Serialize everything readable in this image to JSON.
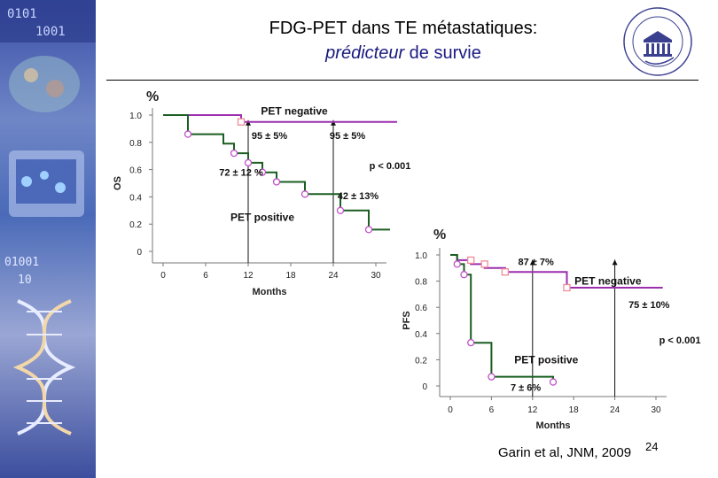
{
  "title": {
    "line1": "FDG-PET dans TE métastatiques:",
    "line2_italic": "prédicteur",
    "line2_rest": " de survie"
  },
  "citation": "Garin et al, JNM, 2009",
  "page_number": "24",
  "colors": {
    "positive": "#1a5e22",
    "negative": "#9b2fae",
    "marker_pos": "#c050c8",
    "marker_neg": "#f08a9a",
    "title_sub": "#1a1a80"
  },
  "chart_data": [
    {
      "type": "line",
      "unit_label": "%",
      "ylabel": "OS",
      "xlabel": "Months",
      "x_ticks": [
        0,
        6,
        12,
        18,
        24,
        30
      ],
      "y_ticks": [
        "0",
        "0.2",
        "0.4",
        "0.6",
        "0.8",
        "1.0"
      ],
      "xlim": [
        0,
        31
      ],
      "ylim": [
        0,
        1.0
      ],
      "series": [
        {
          "name": "PET negative",
          "color": "#9b2fae",
          "steps": [
            [
              0,
              1.0
            ],
            [
              11,
              1.0
            ],
            [
              11,
              0.95
            ],
            [
              33,
              0.95
            ]
          ],
          "markers": [
            [
              11,
              0.95
            ]
          ],
          "marker_color": "#f08a9a"
        },
        {
          "name": "PET positive",
          "color": "#1a5e22",
          "steps": [
            [
              0,
              1.0
            ],
            [
              3.5,
              1.0
            ],
            [
              3.5,
              0.86
            ],
            [
              8.5,
              0.86
            ],
            [
              8.5,
              0.79
            ],
            [
              10,
              0.79
            ],
            [
              10,
              0.72
            ],
            [
              12,
              0.72
            ],
            [
              12,
              0.65
            ],
            [
              14,
              0.65
            ],
            [
              14,
              0.58
            ],
            [
              16,
              0.58
            ],
            [
              16,
              0.51
            ],
            [
              20,
              0.51
            ],
            [
              20,
              0.42
            ],
            [
              25,
              0.42
            ],
            [
              25,
              0.3
            ],
            [
              29,
              0.3
            ],
            [
              29,
              0.16
            ],
            [
              32,
              0.16
            ]
          ],
          "markers": [
            [
              3.5,
              0.86
            ],
            [
              10,
              0.72
            ],
            [
              12,
              0.65
            ],
            [
              14,
              0.58
            ],
            [
              16,
              0.51
            ],
            [
              20,
              0.42
            ],
            [
              25,
              0.3
            ],
            [
              29,
              0.16
            ]
          ],
          "marker_color": "#c050c8"
        }
      ],
      "reference_x": [
        12,
        24
      ],
      "annotations": [
        {
          "text": "PET negative",
          "x": 18.5,
          "y": 1.03
        },
        {
          "text": "95 ± 5%",
          "x": 15,
          "y": 0.85
        },
        {
          "text": "95 ± 5%",
          "x": 26,
          "y": 0.85
        },
        {
          "text": "p < 0.001",
          "x": 32,
          "y": 0.63
        },
        {
          "text": "72 ± 12 %",
          "x": 11,
          "y": 0.58
        },
        {
          "text": "42 ± 13%",
          "x": 27.5,
          "y": 0.41
        },
        {
          "text": "PET positive",
          "x": 14,
          "y": 0.25
        }
      ]
    },
    {
      "type": "line",
      "unit_label": "%",
      "ylabel": "PFS",
      "xlabel": "Months",
      "x_ticks": [
        0,
        6,
        12,
        18,
        24,
        30
      ],
      "y_ticks": [
        "0",
        "0.2",
        "0.4",
        "0.6",
        "0.8",
        "1.0"
      ],
      "xlim": [
        0,
        31
      ],
      "ylim": [
        0,
        1.0
      ],
      "series": [
        {
          "name": "PET negative",
          "color": "#9b2fae",
          "steps": [
            [
              0,
              1.0
            ],
            [
              1,
              1.0
            ],
            [
              1,
              0.96
            ],
            [
              3,
              0.96
            ],
            [
              3,
              0.93
            ],
            [
              5,
              0.93
            ],
            [
              5,
              0.9
            ],
            [
              8,
              0.9
            ],
            [
              8,
              0.87
            ],
            [
              17,
              0.87
            ],
            [
              17,
              0.75
            ],
            [
              31,
              0.75
            ]
          ],
          "markers": [
            [
              3,
              0.96
            ],
            [
              5,
              0.93
            ],
            [
              8,
              0.87
            ],
            [
              17,
              0.75
            ]
          ],
          "marker_color": "#f08a9a"
        },
        {
          "name": "PET positive",
          "color": "#1a5e22",
          "steps": [
            [
              0,
              1.0
            ],
            [
              1,
              1.0
            ],
            [
              1,
              0.93
            ],
            [
              2,
              0.93
            ],
            [
              2,
              0.85
            ],
            [
              3,
              0.85
            ],
            [
              3,
              0.33
            ],
            [
              6,
              0.33
            ],
            [
              6,
              0.07
            ],
            [
              15,
              0.07
            ],
            [
              15,
              0.03
            ]
          ],
          "markers": [
            [
              1,
              0.93
            ],
            [
              2,
              0.85
            ],
            [
              3,
              0.33
            ],
            [
              6,
              0.07
            ],
            [
              15,
              0.03
            ]
          ],
          "marker_color": "#c050c8"
        }
      ],
      "reference_x": [
        12,
        24
      ],
      "annotations": [
        {
          "text": "87 ± 7%",
          "x": 12.5,
          "y": 0.95
        },
        {
          "text": "PET negative",
          "x": 23,
          "y": 0.8
        },
        {
          "text": "75 ± 10%",
          "x": 29,
          "y": 0.62
        },
        {
          "text": "p < 0.001",
          "x": 33.5,
          "y": 0.35
        },
        {
          "text": "PET positive",
          "x": 14,
          "y": 0.2
        },
        {
          "text": "7 ± 6%",
          "x": 11,
          "y": -0.01
        }
      ]
    }
  ]
}
